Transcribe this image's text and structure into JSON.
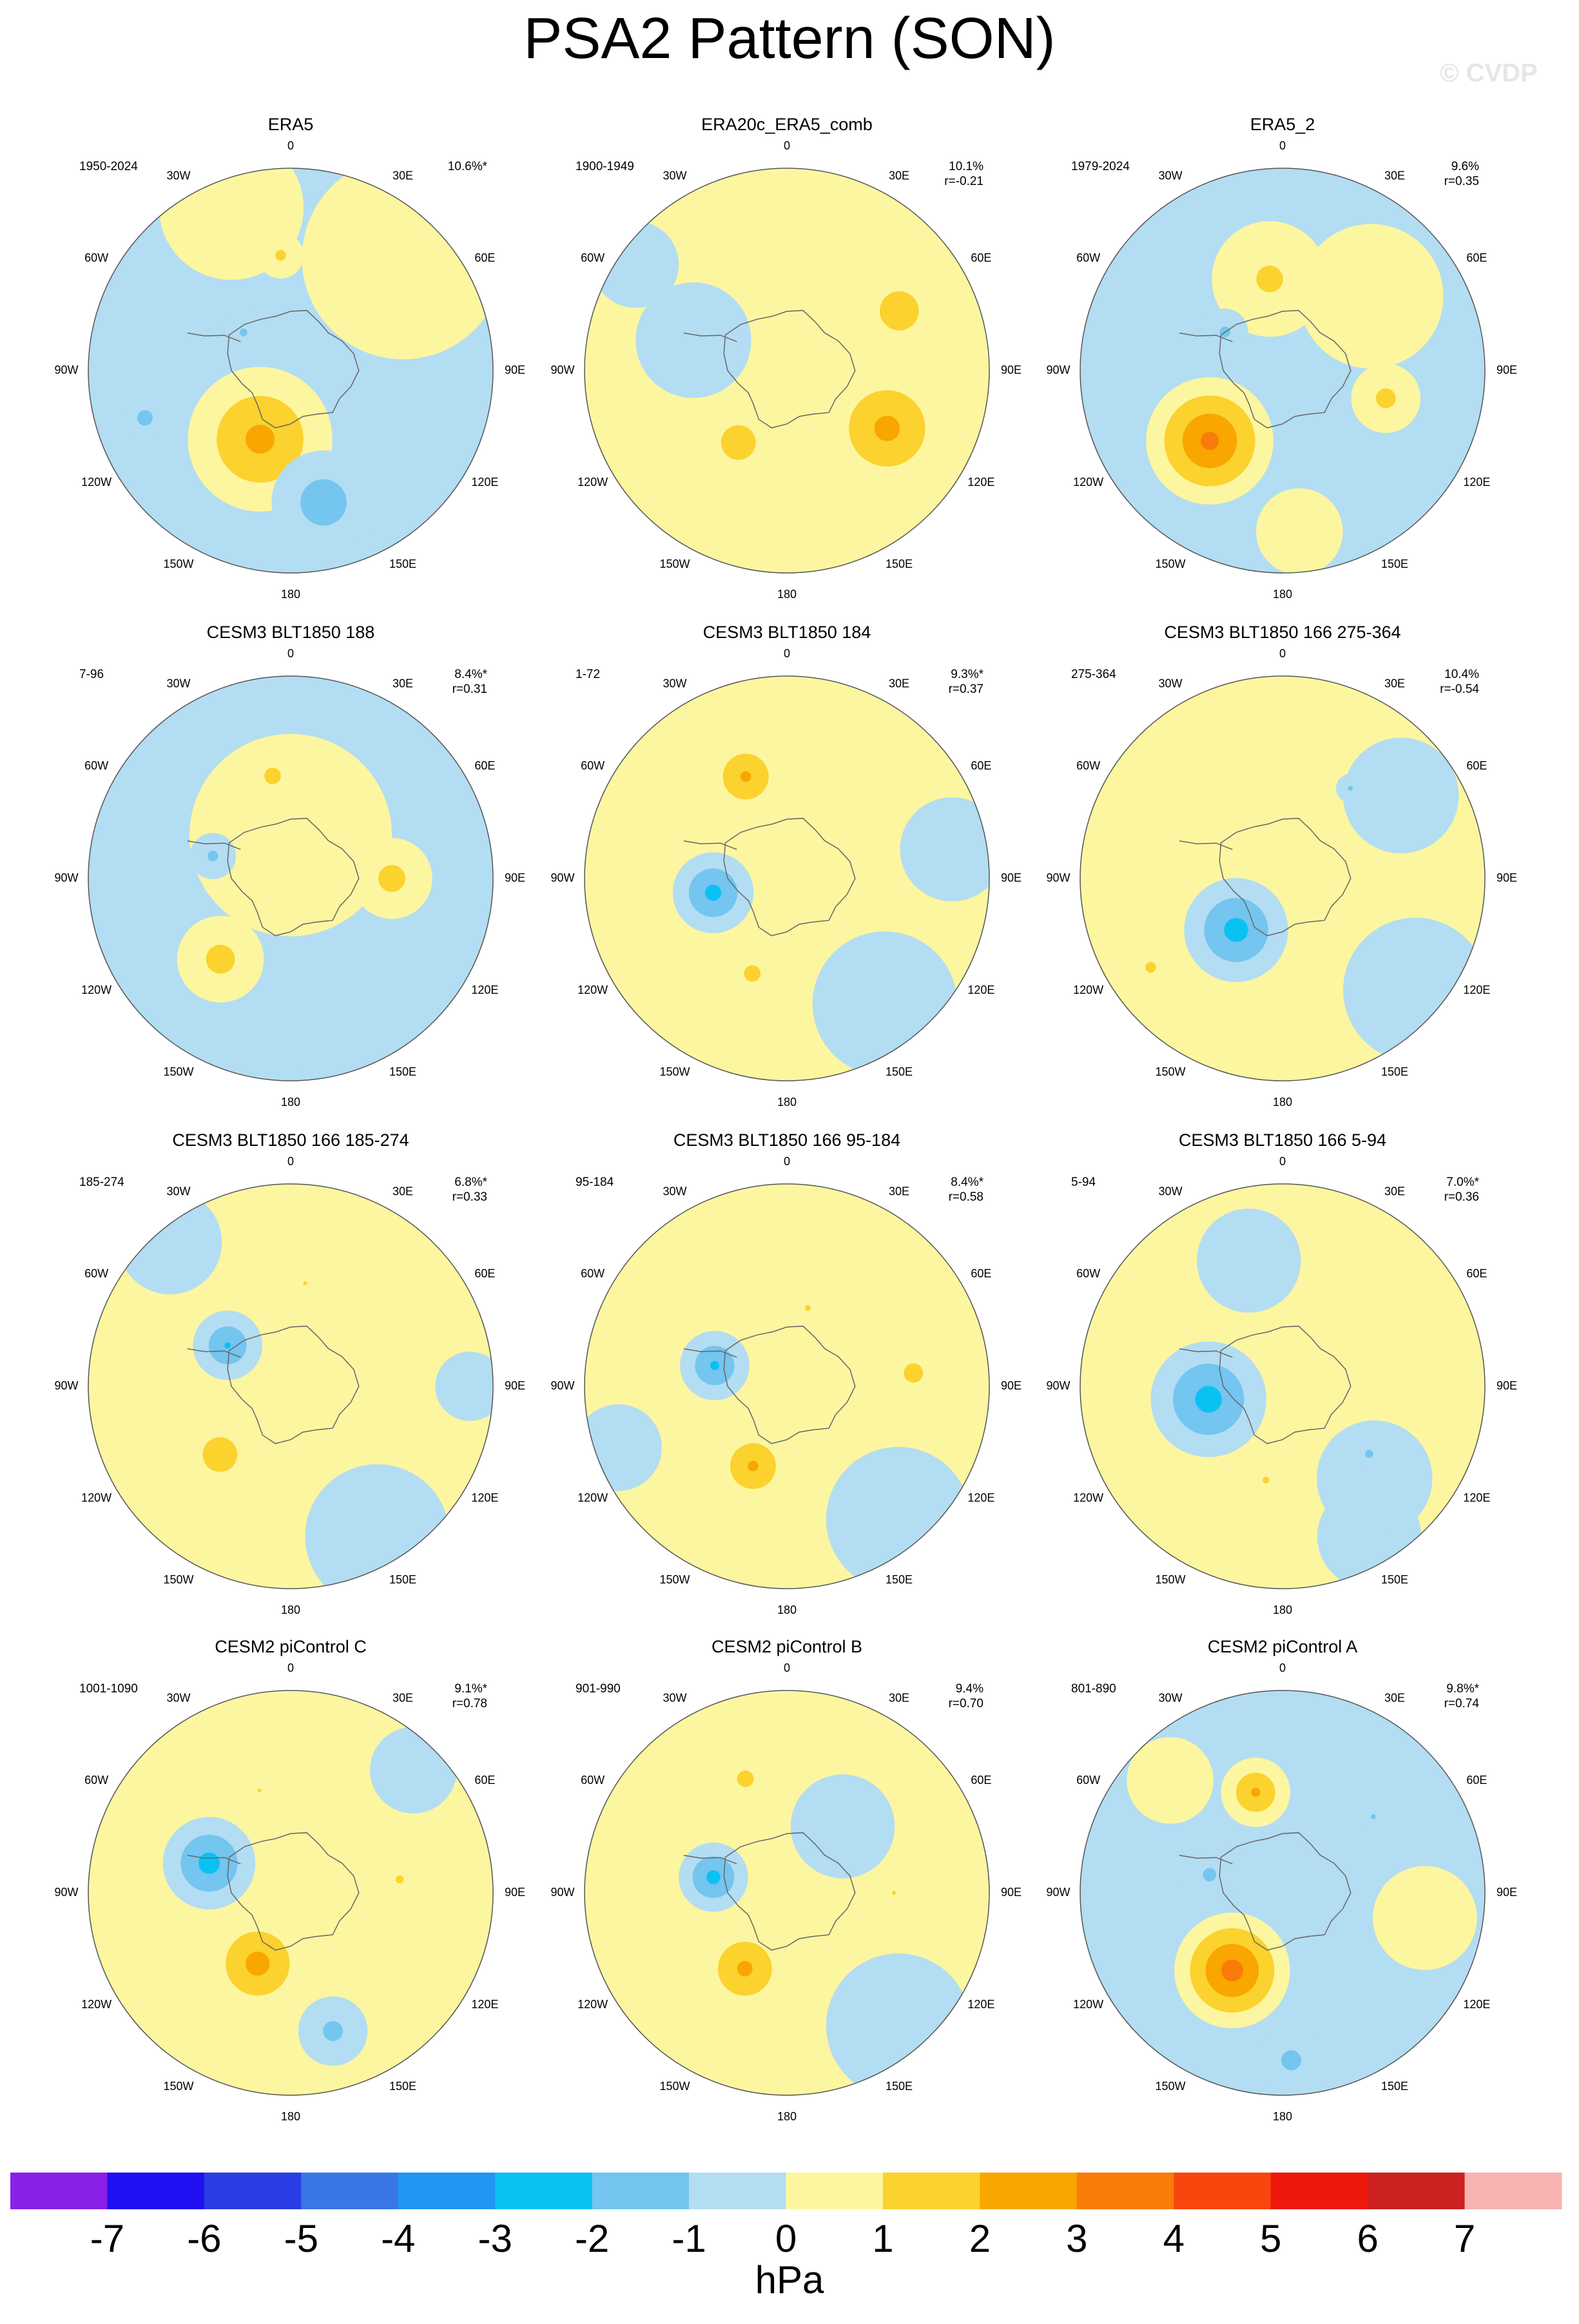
{
  "title": "PSA2 Pattern (SON)",
  "watermark": "© CVDP",
  "lon_labels": [
    0,
    {
      "value": 30,
      "label": "30E"
    },
    {
      "value": 60,
      "label": "60E"
    },
    {
      "value": 90,
      "label": "90E"
    },
    {
      "value": 120,
      "label": "120E"
    },
    {
      "value": 150,
      "label": "150E"
    },
    180,
    {
      "value": -150,
      "label": "150W"
    },
    {
      "value": -120,
      "label": "120W"
    },
    {
      "value": -90,
      "label": "90W"
    },
    {
      "value": -60,
      "label": "60W"
    },
    {
      "value": -30,
      "label": "30W"
    }
  ],
  "colorbar": {
    "levels": [
      -7,
      -6,
      -5,
      -4,
      -3,
      -2,
      -1,
      0,
      1,
      2,
      3,
      4,
      5,
      6,
      7
    ],
    "colors": [
      "#8a1fe6",
      "#1f10f2",
      "#2a3de4",
      "#3777e6",
      "#2196f3",
      "#0ac1f4",
      "#74c5ef",
      "#b3ddf2",
      "#fdf6a0",
      "#fbd22e",
      "#f9a600",
      "#f97b0a",
      "#f8460c",
      "#ef180c",
      "#cd2020",
      "#f8b2b2"
    ],
    "label": "hPa"
  },
  "chart_data": [
    {
      "type": "polar-contour",
      "title": "ERA5",
      "period": "1950-2024",
      "variance": "10.6%*",
      "background": -0.5,
      "anomalies": [
        {
          "lon": 45,
          "lat": -35,
          "value": 0.8,
          "extent": 35
        },
        {
          "lon": -20,
          "lat": -30,
          "value": 0.6,
          "extent": 25
        },
        {
          "lon": -5,
          "lat": -50,
          "value": 1.3,
          "extent": 8
        },
        {
          "lon": -156,
          "lat": -64,
          "value": 2.5,
          "extent": 25
        },
        {
          "lon": 166,
          "lat": -43,
          "value": -1.8,
          "extent": 18
        },
        {
          "lon": -108,
          "lat": -37,
          "value": -1.5,
          "extent": 8
        },
        {
          "lon": -51,
          "lat": -69,
          "value": -1.2,
          "extent": 8
        }
      ]
    },
    {
      "type": "polar-contour",
      "title": "ERA20c_ERA5_comb",
      "period": "1900-1949",
      "variance": "10.1%",
      "correlation": "r=-0.21",
      "background": 0.6,
      "anomalies": [
        {
          "lon": -72,
          "lat": -56,
          "value": -0.7,
          "extent": 20
        },
        {
          "lon": -55,
          "lat": -26,
          "value": -0.7,
          "extent": 15
        },
        {
          "lon": 62,
          "lat": -46,
          "value": 1.6,
          "extent": 18
        },
        {
          "lon": -146,
          "lat": -60,
          "value": 1.5,
          "extent": 18
        },
        {
          "lon": 120,
          "lat": -50,
          "value": 2.5,
          "extent": 22
        }
      ]
    },
    {
      "type": "polar-contour",
      "title": "ERA5_2",
      "period": "1979-2024",
      "variance": "9.6%",
      "correlation": "r=0.35",
      "background": -0.5,
      "anomalies": [
        {
          "lon": 50,
          "lat": -50,
          "value": 0.6,
          "extent": 25
        },
        {
          "lon": 174,
          "lat": -34,
          "value": 0.5,
          "extent": 15
        },
        {
          "lon": -8,
          "lat": -58,
          "value": 1.3,
          "extent": 20
        },
        {
          "lon": -134,
          "lat": -55,
          "value": 3.5,
          "extent": 22
        },
        {
          "lon": -56,
          "lat": -66,
          "value": -1.3,
          "extent": 8
        },
        {
          "lon": 105,
          "lat": -53,
          "value": 1.4,
          "extent": 12
        }
      ]
    },
    {
      "type": "polar-contour",
      "title": "CESM3 BLT1850 188",
      "period": "7-96",
      "variance": "8.4%*",
      "correlation": "r=0.31",
      "background": -0.5,
      "anomalies": [
        {
          "lon": 0,
          "lat": -75,
          "value": 0.7,
          "extent": 35
        },
        {
          "lon": 160,
          "lat": -30,
          "value": -0.6,
          "extent": 20
        },
        {
          "lon": -10,
          "lat": -54,
          "value": 1.4,
          "extent": 10
        },
        {
          "lon": 90,
          "lat": -55,
          "value": 1.5,
          "extent": 14
        },
        {
          "lon": -139,
          "lat": -53,
          "value": 1.5,
          "extent": 15
        },
        {
          "lon": -74,
          "lat": -62,
          "value": -1.3,
          "extent": 8
        }
      ]
    },
    {
      "type": "polar-contour",
      "title": "CESM3 BLT1850 184",
      "period": "1-72",
      "variance": "9.3%*",
      "correlation": "r=0.37",
      "background": 0.5,
      "anomalies": [
        {
          "lon": 142,
          "lat": -35,
          "value": -0.6,
          "extent": 25
        },
        {
          "lon": 80,
          "lat": -32,
          "value": -0.5,
          "extent": 18
        },
        {
          "lon": -101,
          "lat": -64,
          "value": -2.5,
          "extent": 14
        },
        {
          "lon": -22,
          "lat": -52,
          "value": 2.3,
          "extent": 14
        },
        {
          "lon": -160,
          "lat": -55,
          "value": 1.4,
          "extent": 10
        }
      ]
    },
    {
      "type": "polar-contour",
      "title": "CESM3 BLT1850 166 275-364",
      "period": "275-364",
      "variance": "10.4%",
      "correlation": "r=-0.54",
      "background": 0.5,
      "anomalies": [
        {
          "lon": 130,
          "lat": -30,
          "value": -0.6,
          "extent": 25
        },
        {
          "lon": 55,
          "lat": -40,
          "value": -0.6,
          "extent": 20
        },
        {
          "lon": -138,
          "lat": -66,
          "value": -2.6,
          "extent": 18
        },
        {
          "lon": -124,
          "lat": -35,
          "value": 1.3,
          "extent": 8
        },
        {
          "lon": 37,
          "lat": -51,
          "value": -1.2,
          "extent": 5
        }
      ]
    },
    {
      "type": "polar-contour",
      "title": "CESM3 BLT1850 166 185-274",
      "period": "185-274",
      "variance": "6.8%*",
      "correlation": "r=0.33",
      "background": 0.5,
      "anomalies": [
        {
          "lon": 150,
          "lat": -30,
          "value": -0.6,
          "extent": 25
        },
        {
          "lon": -40,
          "lat": -25,
          "value": -0.6,
          "extent": 18
        },
        {
          "lon": 90,
          "lat": -28,
          "value": -0.5,
          "extent": 12
        },
        {
          "lon": -57,
          "lat": -64,
          "value": -2.2,
          "extent": 12
        },
        {
          "lon": -134,
          "lat": -56,
          "value": 1.6,
          "extent": 16
        },
        {
          "lon": 8,
          "lat": -54,
          "value": 1.2,
          "extent": 4
        }
      ]
    },
    {
      "type": "polar-contour",
      "title": "CESM3 BLT1850 166 95-184",
      "period": "95-184",
      "variance": "8.4%*",
      "correlation": "r=0.58",
      "background": 0.5,
      "anomalies": [
        {
          "lon": 140,
          "lat": -30,
          "value": -0.6,
          "extent": 25
        },
        {
          "lon": -110,
          "lat": -28,
          "value": -0.6,
          "extent": 15
        },
        {
          "lon": -74,
          "lat": -64,
          "value": -2.3,
          "extent": 12
        },
        {
          "lon": -157,
          "lat": -60,
          "value": 2.3,
          "extent": 14
        },
        {
          "lon": 84,
          "lat": -46,
          "value": 1.5,
          "extent": 10
        },
        {
          "lon": 15,
          "lat": -62,
          "value": 1.2,
          "extent": 6
        }
      ]
    },
    {
      "type": "polar-contour",
      "title": "CESM3 BLT1850 166 5-94",
      "period": "5-94",
      "variance": "7.0%*",
      "correlation": "r=0.36",
      "background": 0.5,
      "anomalies": [
        {
          "lon": -15,
          "lat": -45,
          "value": -0.6,
          "extent": 18
        },
        {
          "lon": 150,
          "lat": -30,
          "value": -0.6,
          "extent": 18
        },
        {
          "lon": 135,
          "lat": -45,
          "value": -0.7,
          "extent": 20
        },
        {
          "lon": -100,
          "lat": -64,
          "value": -2.6,
          "extent": 20
        },
        {
          "lon": 128,
          "lat": -52,
          "value": -1.3,
          "extent": 6
        },
        {
          "lon": -170,
          "lat": -57,
          "value": 1.3,
          "extent": 5
        }
      ]
    },
    {
      "type": "polar-contour",
      "title": "CESM2 piControl C",
      "period": "1001-1090",
      "variance": "9.1%*",
      "correlation": "r=0.78",
      "background": 0.5,
      "anomalies": [
        {
          "lon": 45,
          "lat": -30,
          "value": -0.6,
          "extent": 15
        },
        {
          "lon": -70,
          "lat": -60,
          "value": -2.6,
          "extent": 16
        },
        {
          "lon": -155,
          "lat": -63,
          "value": 2.6,
          "extent": 18
        },
        {
          "lon": 163,
          "lat": -40,
          "value": -1.4,
          "extent": 12
        },
        {
          "lon": 83,
          "lat": -52,
          "value": 1.3,
          "extent": 6
        },
        {
          "lon": -17,
          "lat": -53,
          "value": 1.2,
          "extent": 4
        }
      ]
    },
    {
      "type": "polar-contour",
      "title": "CESM2 piControl B",
      "period": "901-990",
      "variance": "9.4%",
      "correlation": "r=0.70",
      "background": 0.5,
      "anomalies": [
        {
          "lon": 40,
          "lat": -60,
          "value": -0.6,
          "extent": 18
        },
        {
          "lon": 140,
          "lat": -30,
          "value": -0.6,
          "extent": 25
        },
        {
          "lon": -78,
          "lat": -64,
          "value": -2.5,
          "extent": 12
        },
        {
          "lon": -151,
          "lat": -60,
          "value": 2.4,
          "extent": 16
        },
        {
          "lon": -20,
          "lat": -48,
          "value": 1.4,
          "extent": 10
        },
        {
          "lon": 90,
          "lat": -53,
          "value": 1.2,
          "extent": 4
        }
      ]
    },
    {
      "type": "polar-contour",
      "title": "CESM2 piControl A",
      "period": "801-890",
      "variance": "9.8%*",
      "correlation": "r=0.74",
      "background": -0.5,
      "anomalies": [
        {
          "lon": 100,
          "lat": -40,
          "value": 0.7,
          "extent": 18
        },
        {
          "lon": -45,
          "lat": -35,
          "value": 0.6,
          "extent": 15
        },
        {
          "lon": -15,
          "lat": -54,
          "value": 2.3,
          "extent": 12
        },
        {
          "lon": -147,
          "lat": -58,
          "value": 3.7,
          "extent": 20
        },
        {
          "lon": -76,
          "lat": -64,
          "value": -1.3,
          "extent": 10
        },
        {
          "lon": 177,
          "lat": -32,
          "value": -1.4,
          "extent": 12
        },
        {
          "lon": 50,
          "lat": -49,
          "value": -1.2,
          "extent": 5
        }
      ]
    }
  ]
}
